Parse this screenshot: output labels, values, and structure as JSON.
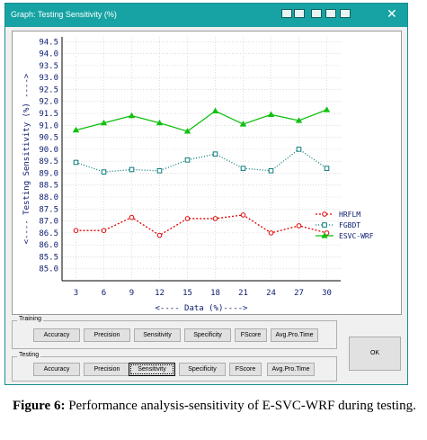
{
  "window": {
    "title": "Graph: Testing Sensitivity (%)",
    "close_glyph": "✕",
    "accent": "#17a3a3"
  },
  "chart_data": {
    "type": "line",
    "ylabel": "<---- Testing Sensitivity (%) ---->",
    "xlabel": "<---- Data (%)---->",
    "x": [
      3,
      6,
      9,
      12,
      15,
      18,
      21,
      24,
      27,
      30
    ],
    "ylim": [
      84.5,
      94.7
    ],
    "yticks": [
      "85.0",
      "85.5",
      "86.0",
      "86.5",
      "87.0",
      "87.5",
      "88.0",
      "88.5",
      "89.0",
      "89.5",
      "90.0",
      "90.5",
      "91.0",
      "91.5",
      "92.0",
      "92.5",
      "93.0",
      "93.5",
      "94.0",
      "94.5"
    ],
    "grid": true,
    "legend_position": "right",
    "series": [
      {
        "name": "HRFLM",
        "color": "#e00000",
        "marker": "circle",
        "dash": "2,2",
        "values": [
          86.6,
          86.6,
          87.15,
          86.4,
          87.1,
          87.1,
          87.25,
          86.5,
          86.8,
          86.5
        ]
      },
      {
        "name": "FGBDT",
        "color": "#0a7a7a",
        "marker": "square",
        "dash": "1,2",
        "values": [
          89.45,
          89.05,
          89.15,
          89.1,
          89.55,
          89.8,
          89.2,
          89.1,
          90.0,
          89.2
        ]
      },
      {
        "name": "ESVC-WRF",
        "color": "#10c010",
        "marker": "triangle",
        "dash": "",
        "values": [
          90.8,
          91.1,
          91.4,
          91.1,
          90.75,
          91.6,
          91.05,
          91.45,
          91.2,
          91.65
        ]
      }
    ]
  },
  "training": {
    "label": "Training",
    "buttons": [
      "Accuracy",
      "Precision",
      "Sensitivity",
      "Specificity",
      "FScore",
      "Avg.Pro.Time"
    ]
  },
  "testing": {
    "label": "Testing",
    "buttons": [
      "Accuracy",
      "Precision",
      "Sensitivity",
      "Specificity",
      "FScore",
      "Avg.Pro.Time"
    ],
    "active": "Sensitivity"
  },
  "ok_label": "OK",
  "caption": {
    "bold": "Figure 6:",
    "text": " Performance analysis-sensitivity of E-SVC-WRF during testing."
  }
}
